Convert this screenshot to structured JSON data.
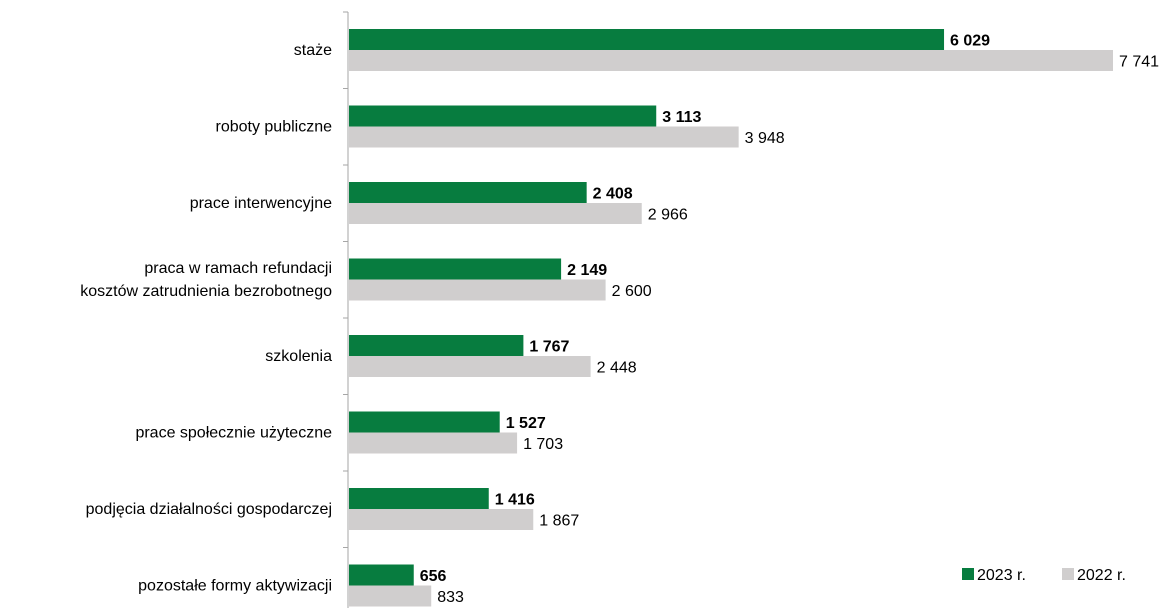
{
  "chart_data": {
    "type": "bar",
    "orientation": "horizontal",
    "categories": [
      [
        "staże"
      ],
      [
        "roboty publiczne"
      ],
      [
        "prace interwencyjne"
      ],
      [
        "praca w ramach refundacji",
        "kosztów zatrudnienia bezrobotnego"
      ],
      [
        "szkolenia"
      ],
      [
        "prace społecznie użyteczne"
      ],
      [
        "podjęcia działalności gospodarczej"
      ],
      [
        "pozostałe formy aktywizacji"
      ]
    ],
    "series": [
      {
        "name": "2023 r.",
        "color": "#077c3f",
        "values": [
          6029,
          3113,
          2408,
          2149,
          1767,
          1527,
          1416,
          656
        ],
        "labels": [
          "6 029",
          "3 113",
          "2 408",
          "2 149",
          "1 767",
          "1 527",
          "1 416",
          "656"
        ]
      },
      {
        "name": "2022 r.",
        "color": "#d0cece",
        "values": [
          7741,
          3948,
          2966,
          2600,
          2448,
          1703,
          1867,
          833
        ],
        "labels": [
          "7 741",
          "3 948",
          "2 966",
          "2 600",
          "2 448",
          "1 703",
          "1 867",
          "833"
        ]
      }
    ],
    "xlim": [
      0,
      8000
    ],
    "grid": false,
    "legend_position": "bottom-right"
  }
}
